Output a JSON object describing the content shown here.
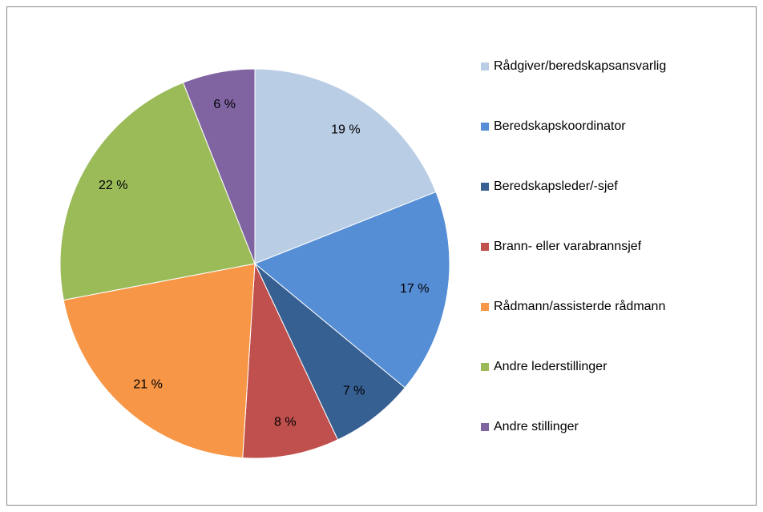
{
  "chart_data": {
    "type": "pie",
    "categories": [
      "Rådgiver/beredskapsansvarlig",
      "Beredskapskoordinator",
      "Beredskapsleder/-sjef",
      "Brann- eller varabrannsjef",
      "Rådmann/assisterde rådmann",
      "Andre lederstillinger",
      "Andre stillinger"
    ],
    "values": [
      19,
      17,
      7,
      8,
      21,
      22,
      6
    ],
    "value_labels": [
      "19 %",
      "17 %",
      "7 %",
      "8 %",
      "21 %",
      "22 %",
      "6 %"
    ],
    "colors": [
      "#b9cde5",
      "#558ed5",
      "#376092",
      "#c0504d",
      "#f79646",
      "#9bbb59",
      "#8064a2"
    ],
    "legend": "right"
  }
}
